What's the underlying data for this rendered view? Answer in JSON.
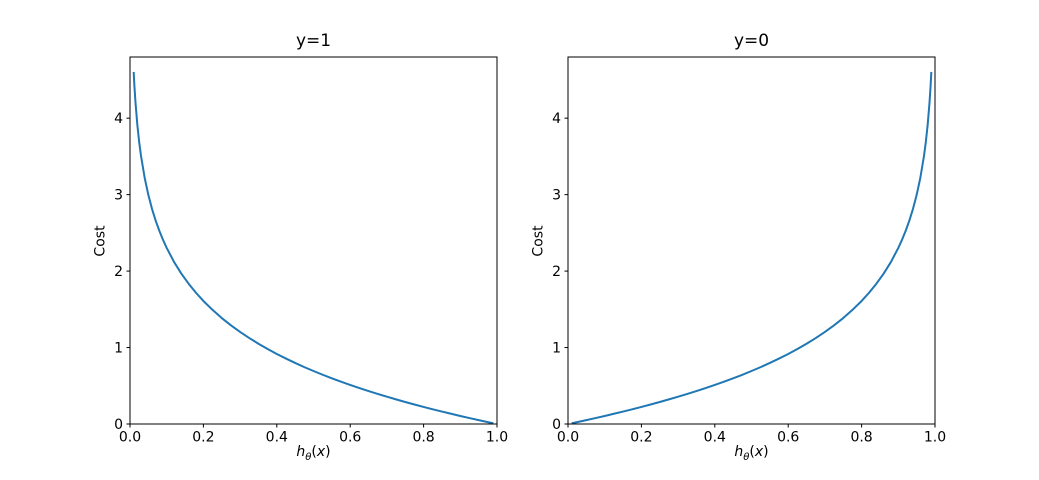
{
  "figure": {
    "background": "#ffffff",
    "line_color": "#1f77b4",
    "spine_color": "#000000",
    "text_color": "#000000"
  },
  "chart_data": [
    {
      "type": "line",
      "title": "y=1",
      "ylabel": "Cost",
      "xlabel": "hθ(x)",
      "xlabel_math": {
        "base": "h",
        "sub": "θ",
        "open": "(",
        "var": "x",
        "close": ")"
      },
      "xlim": [
        0.0,
        1.0
      ],
      "ylim": [
        0.0,
        4.8
      ],
      "xticks": [
        0.0,
        0.2,
        0.4,
        0.6,
        0.8,
        1.0
      ],
      "xtick_labels": [
        "0.0",
        "0.2",
        "0.4",
        "0.6",
        "0.8",
        "1.0"
      ],
      "yticks": [
        0,
        1,
        2,
        3,
        4
      ],
      "ytick_labels": [
        "0",
        "1",
        "2",
        "3",
        "4"
      ],
      "grid": false,
      "series": [
        {
          "x": [
            0.01,
            0.012,
            0.015,
            0.02,
            0.025,
            0.03,
            0.04,
            0.05,
            0.06,
            0.07,
            0.08,
            0.09,
            0.1,
            0.12,
            0.14,
            0.16,
            0.18,
            0.2,
            0.225,
            0.25,
            0.275,
            0.3,
            0.325,
            0.35,
            0.375,
            0.4,
            0.425,
            0.45,
            0.475,
            0.5,
            0.525,
            0.55,
            0.575,
            0.6,
            0.625,
            0.65,
            0.675,
            0.7,
            0.725,
            0.75,
            0.775,
            0.8,
            0.825,
            0.85,
            0.875,
            0.9,
            0.925,
            0.95,
            0.975,
            0.99
          ],
          "y": [
            4.605,
            4.423,
            4.2,
            3.912,
            3.689,
            3.507,
            3.219,
            2.996,
            2.813,
            2.659,
            2.526,
            2.408,
            2.303,
            2.12,
            1.966,
            1.833,
            1.715,
            1.609,
            1.492,
            1.386,
            1.291,
            1.204,
            1.124,
            1.05,
            0.981,
            0.916,
            0.856,
            0.799,
            0.744,
            0.693,
            0.644,
            0.598,
            0.553,
            0.511,
            0.47,
            0.431,
            0.393,
            0.357,
            0.322,
            0.288,
            0.255,
            0.223,
            0.192,
            0.163,
            0.134,
            0.105,
            0.078,
            0.051,
            0.025,
            0.01
          ]
        }
      ]
    },
    {
      "type": "line",
      "title": "y=0",
      "ylabel": "Cost",
      "xlabel": "hθ(x)",
      "xlabel_math": {
        "base": "h",
        "sub": "θ",
        "open": "(",
        "var": "x",
        "close": ")"
      },
      "xlim": [
        0.0,
        1.0
      ],
      "ylim": [
        0.0,
        4.8
      ],
      "xticks": [
        0.0,
        0.2,
        0.4,
        0.6,
        0.8,
        1.0
      ],
      "xtick_labels": [
        "0.0",
        "0.2",
        "0.4",
        "0.6",
        "0.8",
        "1.0"
      ],
      "yticks": [
        0,
        1,
        2,
        3,
        4
      ],
      "ytick_labels": [
        "0",
        "1",
        "2",
        "3",
        "4"
      ],
      "grid": false,
      "series": [
        {
          "x": [
            0.01,
            0.025,
            0.05,
            0.075,
            0.1,
            0.125,
            0.15,
            0.175,
            0.2,
            0.225,
            0.25,
            0.275,
            0.3,
            0.325,
            0.35,
            0.375,
            0.4,
            0.425,
            0.45,
            0.475,
            0.5,
            0.525,
            0.55,
            0.575,
            0.6,
            0.625,
            0.65,
            0.675,
            0.7,
            0.725,
            0.75,
            0.775,
            0.8,
            0.82,
            0.84,
            0.86,
            0.88,
            0.9,
            0.91,
            0.92,
            0.93,
            0.94,
            0.95,
            0.96,
            0.97,
            0.975,
            0.98,
            0.985,
            0.988,
            0.99
          ],
          "y": [
            0.01,
            0.025,
            0.051,
            0.078,
            0.105,
            0.134,
            0.163,
            0.192,
            0.223,
            0.255,
            0.288,
            0.322,
            0.357,
            0.393,
            0.431,
            0.47,
            0.511,
            0.553,
            0.598,
            0.644,
            0.693,
            0.744,
            0.799,
            0.856,
            0.916,
            0.981,
            1.05,
            1.124,
            1.204,
            1.291,
            1.386,
            1.492,
            1.609,
            1.715,
            1.833,
            1.966,
            2.12,
            2.303,
            2.408,
            2.526,
            2.659,
            2.813,
            2.996,
            3.219,
            3.507,
            3.689,
            3.912,
            4.2,
            4.423,
            4.605
          ]
        }
      ]
    }
  ]
}
